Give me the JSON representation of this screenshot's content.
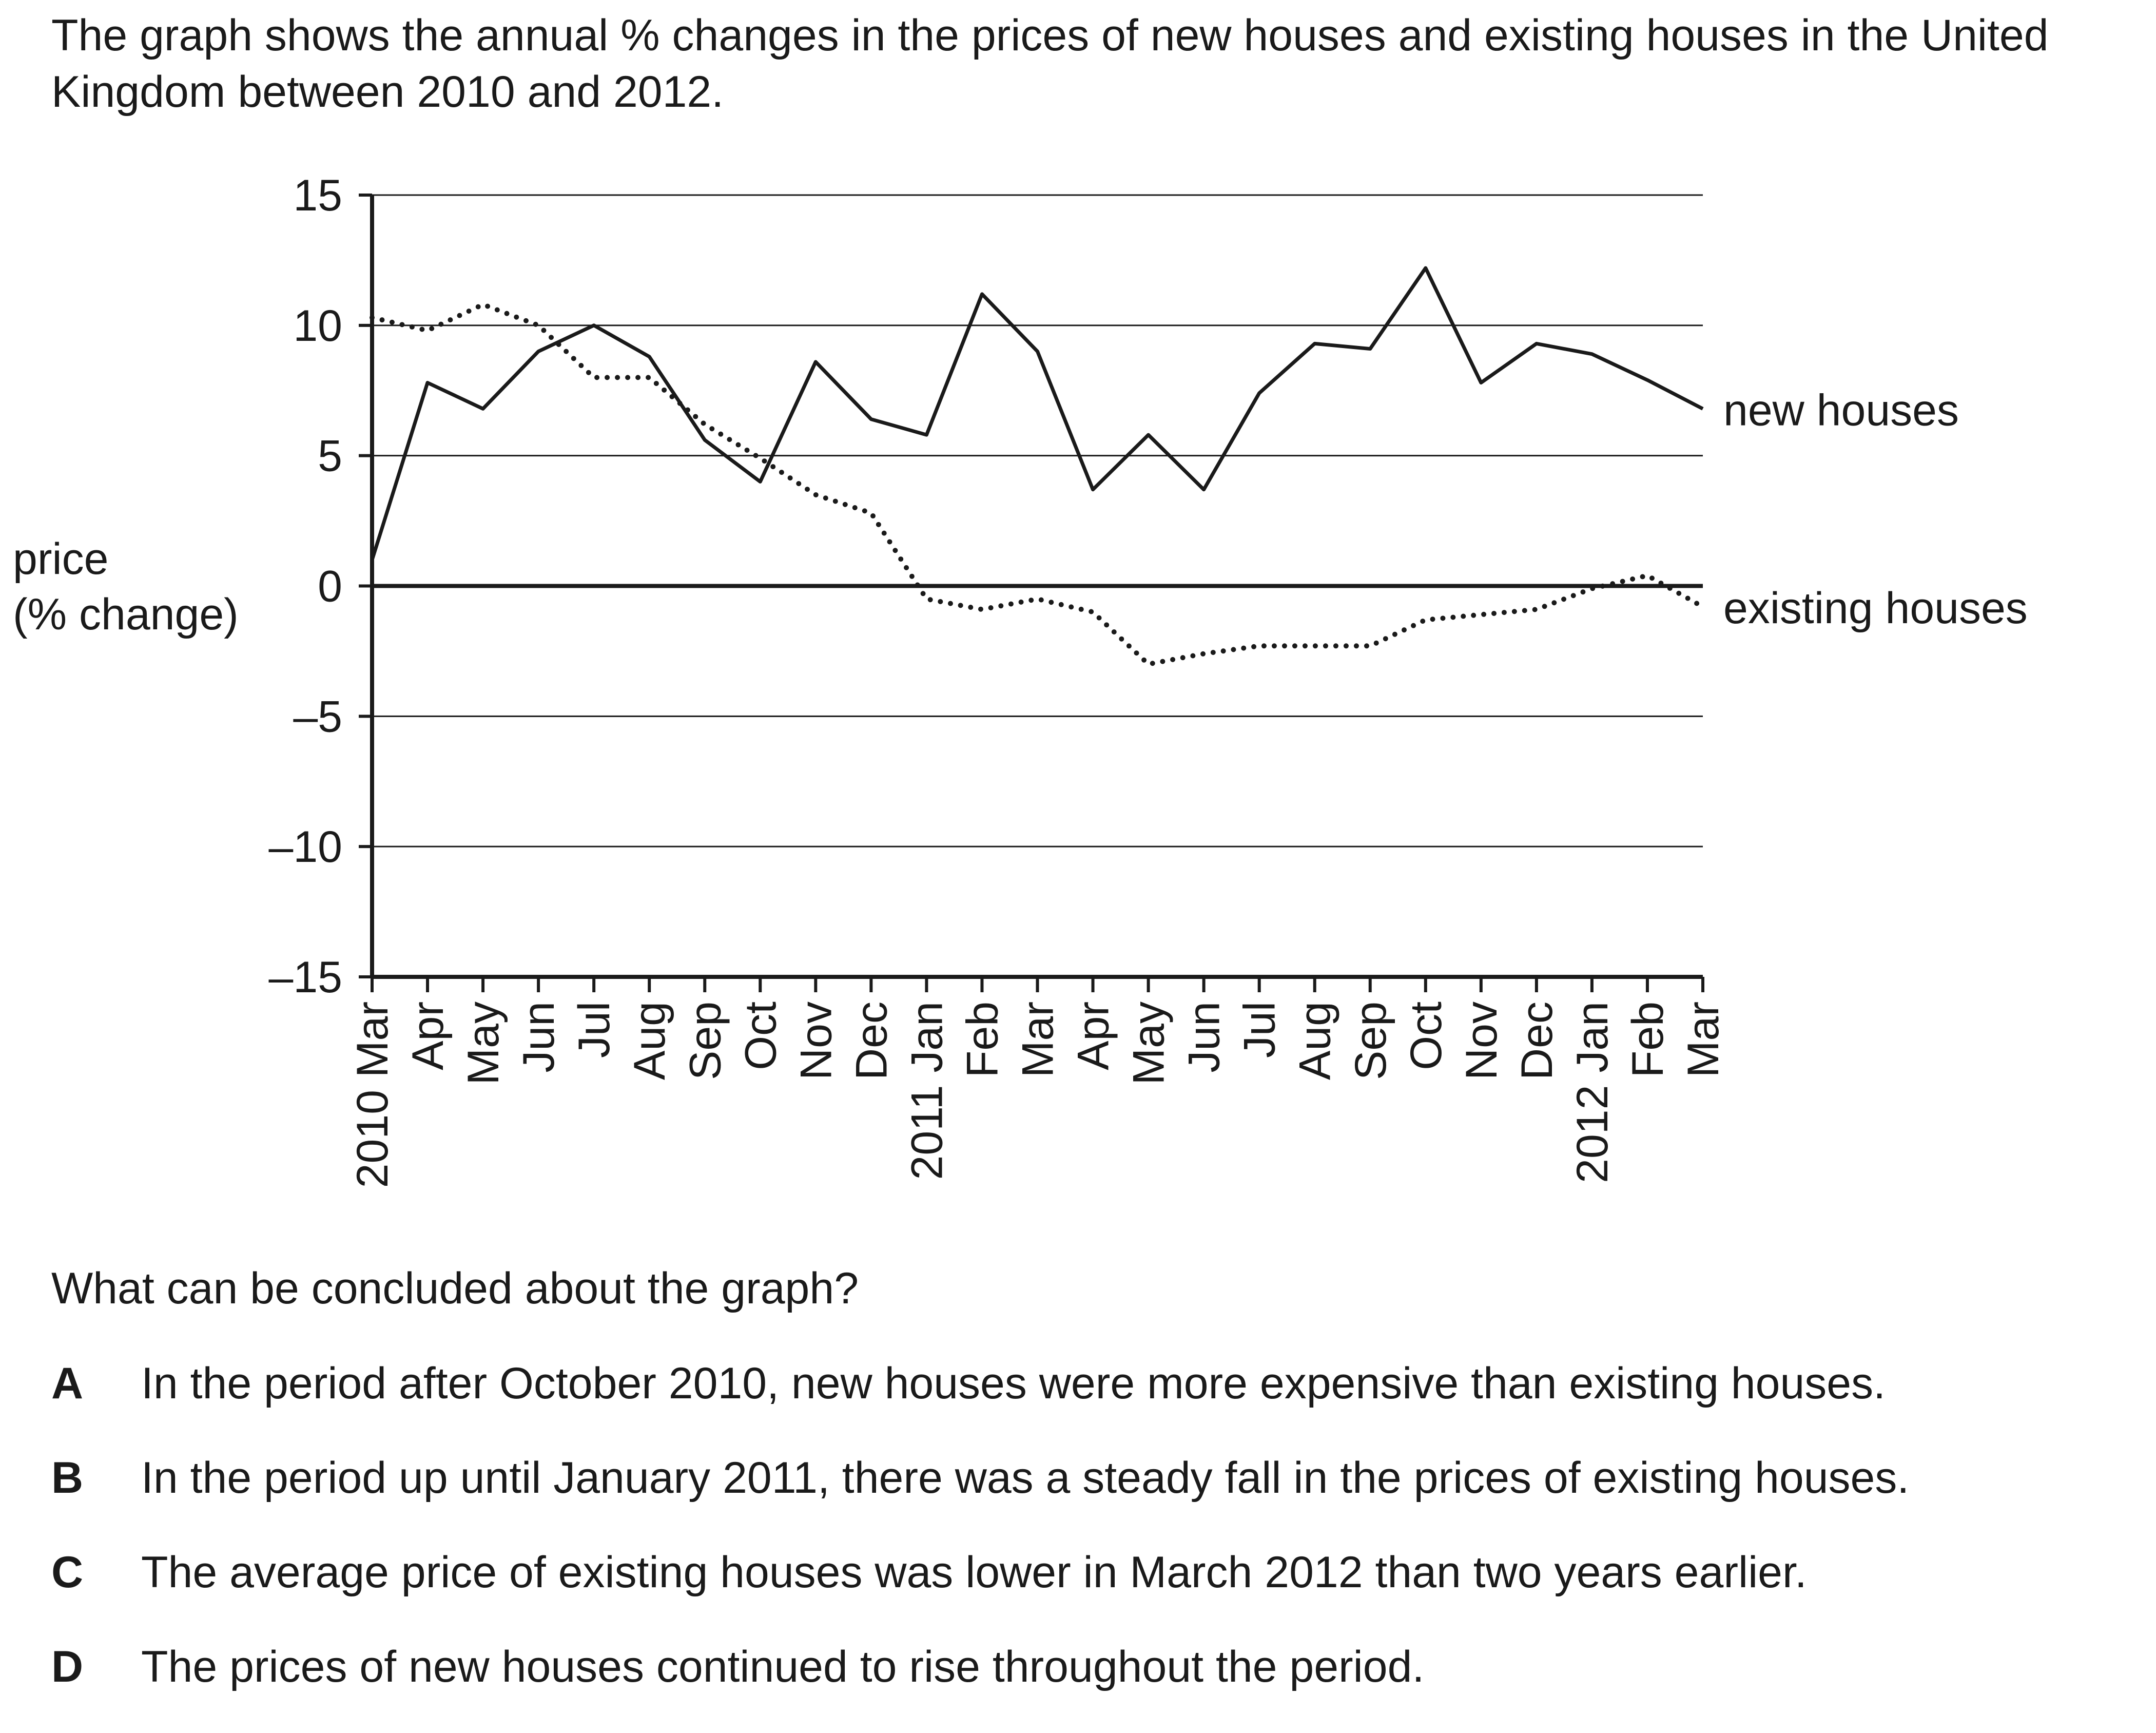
{
  "intro": "The graph shows the annual % changes in the prices of new houses and existing houses in the United Kingdom between 2010 and 2012.",
  "question": "What can be concluded about the graph?",
  "options": [
    {
      "letter": "A",
      "text": "In the period after October 2010, new houses were more expensive than existing houses."
    },
    {
      "letter": "B",
      "text": "In the period up until January 2011, there was a steady fall in the prices of existing houses."
    },
    {
      "letter": "C",
      "text": "The average price of existing houses was lower in March 2012 than two years earlier."
    },
    {
      "letter": "D",
      "text": "The prices of new houses continued to rise throughout the period."
    }
  ],
  "chart_data": {
    "type": "line",
    "title": "",
    "ylabel": [
      "price",
      "(% change)"
    ],
    "xlabel": "",
    "ylim": [
      -15,
      15
    ],
    "yticks": [
      15,
      10,
      5,
      0,
      -5,
      -10,
      -15
    ],
    "ytick_labels": [
      "15",
      "10",
      "5",
      "0",
      "–5",
      "–10",
      "–15"
    ],
    "grid": true,
    "categories": [
      "2010 Mar",
      "Apr",
      "May",
      "Jun",
      "Jul",
      "Aug",
      "Sep",
      "Oct",
      "Nov",
      "Dec",
      "2011 Jan",
      "Feb",
      "Mar",
      "Apr",
      "May",
      "Jun",
      "Jul",
      "Aug",
      "Sep",
      "Oct",
      "Nov",
      "Dec",
      "2012 Jan",
      "Feb",
      "Mar"
    ],
    "series": [
      {
        "name": "new houses",
        "style": "solid",
        "color": "#1a1a1a",
        "values": [
          1.0,
          7.8,
          6.8,
          9.0,
          10.0,
          8.8,
          5.6,
          4.0,
          8.6,
          6.4,
          5.8,
          11.2,
          9.0,
          3.7,
          5.8,
          3.7,
          7.4,
          9.3,
          9.1,
          12.2,
          7.8,
          9.3,
          8.9,
          7.9,
          6.8
        ]
      },
      {
        "name": "existing houses",
        "style": "dotted",
        "color": "#1a1a1a",
        "values": [
          10.3,
          9.8,
          10.8,
          10.0,
          8.0,
          8.0,
          6.2,
          4.9,
          3.5,
          2.8,
          -0.5,
          -0.9,
          -0.5,
          -1.0,
          -3.0,
          -2.6,
          -2.3,
          -2.3,
          -2.3,
          -1.3,
          -1.1,
          -0.9,
          -0.1,
          0.4,
          -0.8
        ]
      }
    ]
  }
}
